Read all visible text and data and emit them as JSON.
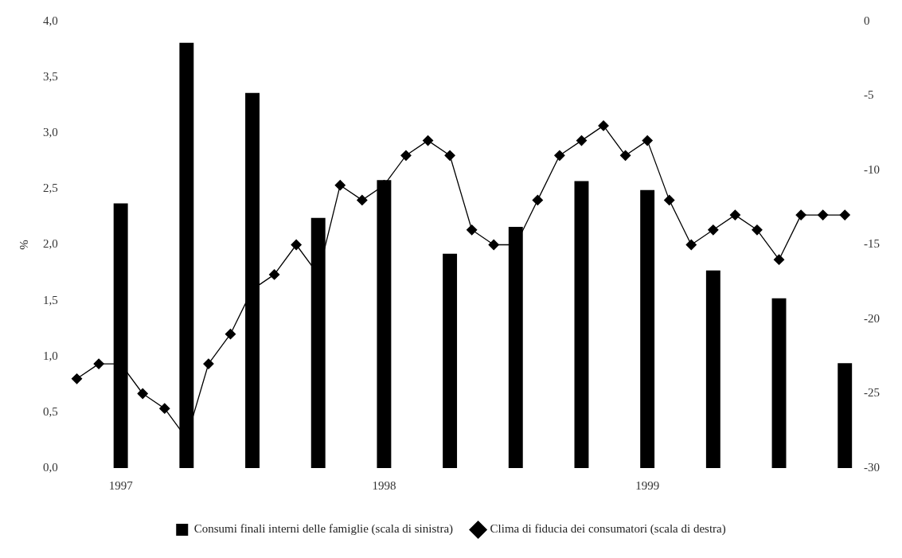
{
  "chart_data": {
    "type": "bar",
    "ylabel": "%",
    "categories": [
      null,
      null,
      "1997",
      null,
      null,
      null,
      null,
      null,
      null,
      null,
      null,
      null,
      null,
      null,
      "1998",
      null,
      null,
      null,
      null,
      null,
      null,
      null,
      null,
      null,
      null,
      null,
      "1999",
      null,
      null,
      null,
      null,
      null,
      null,
      null,
      null,
      null
    ],
    "series": [
      {
        "name": "Consumi finali interni delle famiglie (scala di sinistra)",
        "color": "#000000",
        "values": [
          null,
          null,
          2.37,
          null,
          null,
          3.81,
          null,
          null,
          3.36,
          null,
          null,
          2.24,
          null,
          null,
          2.58,
          null,
          null,
          1.92,
          null,
          null,
          2.16,
          null,
          null,
          2.57,
          null,
          null,
          2.49,
          null,
          null,
          1.77,
          null,
          null,
          1.52,
          null,
          null,
          0.94
        ]
      },
      {
        "name": "Clima di fiducia dei consumatori (scala di destra)",
        "type": "line",
        "axis": "y2",
        "marker": "diamond",
        "color": "#000000",
        "values": [
          -24,
          -23,
          -23,
          -25,
          -26,
          -28,
          -23,
          -21,
          -18,
          -17,
          -15,
          -17,
          -11,
          -12,
          -11,
          -9,
          -8,
          -9,
          -14,
          -15,
          -15,
          -12,
          -9,
          -8,
          -7,
          -9,
          -8,
          -12,
          -15,
          -14,
          -13,
          -14,
          -16,
          -13,
          -13,
          -13
        ]
      }
    ],
    "ylim": [
      0,
      4
    ],
    "yticks": [
      {
        "value": 0,
        "label": "0,0"
      },
      {
        "value": 0.5,
        "label": "0,5"
      },
      {
        "value": 1,
        "label": "1,0"
      },
      {
        "value": 1.5,
        "label": "1,5"
      },
      {
        "value": 2,
        "label": "2,0"
      },
      {
        "value": 2.5,
        "label": "2,5"
      },
      {
        "value": 3,
        "label": "3,0"
      },
      {
        "value": 3.5,
        "label": "3,5"
      },
      {
        "value": 4,
        "label": "4,0"
      }
    ],
    "y2lim": [
      -30,
      0
    ],
    "y2ticks": [
      -30,
      -25,
      -20,
      -15,
      -10,
      -5,
      0
    ],
    "grid": false,
    "legend": "bottom"
  }
}
